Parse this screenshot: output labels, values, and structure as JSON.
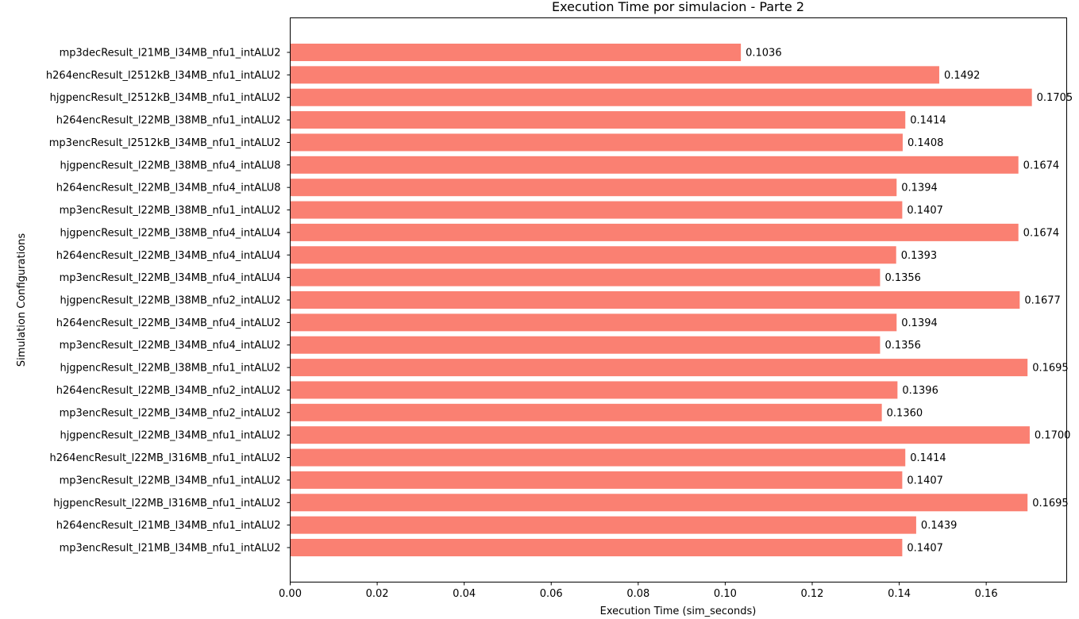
{
  "chart_data": {
    "type": "bar",
    "orientation": "horizontal",
    "title": "Execution Time por simulacion - Parte 2",
    "xlabel": "Execution Time (sim_seconds)",
    "ylabel": "Simulation Configurations",
    "xlim": [
      0,
      0.1785
    ],
    "xticks": [
      0.0,
      0.02,
      0.04,
      0.06,
      0.08,
      0.1,
      0.12,
      0.14,
      0.16
    ],
    "xtick_labels": [
      "0.00",
      "0.02",
      "0.04",
      "0.06",
      "0.08",
      "0.10",
      "0.12",
      "0.14",
      "0.16"
    ],
    "bar_color": "#fa8072",
    "grid": false,
    "categories": [
      "mp3decResult_l21MB_l34MB_nfu1_intALU2",
      "h264encResult_l2512kB_l34MB_nfu1_intALU2",
      "hjgpencResult_l2512kB_l34MB_nfu1_intALU2",
      "h264encResult_l22MB_l38MB_nfu1_intALU2",
      "mp3encResult_l2512kB_l34MB_nfu1_intALU2",
      "hjgpencResult_l22MB_l38MB_nfu4_intALU8",
      "h264encResult_l22MB_l34MB_nfu4_intALU8",
      "mp3encResult_l22MB_l38MB_nfu1_intALU2",
      "hjgpencResult_l22MB_l38MB_nfu4_intALU4",
      "h264encResult_l22MB_l34MB_nfu4_intALU4",
      "mp3encResult_l22MB_l34MB_nfu4_intALU4",
      "hjgpencResult_l22MB_l38MB_nfu2_intALU2",
      "h264encResult_l22MB_l34MB_nfu4_intALU2",
      "mp3encResult_l22MB_l34MB_nfu4_intALU2",
      "hjgpencResult_l22MB_l38MB_nfu1_intALU2",
      "h264encResult_l22MB_l34MB_nfu2_intALU2",
      "mp3encResult_l22MB_l34MB_nfu2_intALU2",
      "hjgpencResult_l22MB_l34MB_nfu1_intALU2",
      "h264encResult_l22MB_l316MB_nfu1_intALU2",
      "mp3encResult_l22MB_l34MB_nfu1_intALU2",
      "hjgpencResult_l22MB_l316MB_nfu1_intALU2",
      "h264encResult_l21MB_l34MB_nfu1_intALU2",
      "mp3encResult_l21MB_l34MB_nfu1_intALU2"
    ],
    "values": [
      0.1036,
      0.1492,
      0.1705,
      0.1414,
      0.1408,
      0.1674,
      0.1394,
      0.1407,
      0.1674,
      0.1393,
      0.1356,
      0.1677,
      0.1394,
      0.1356,
      0.1695,
      0.1396,
      0.136,
      0.17,
      0.1414,
      0.1407,
      0.1695,
      0.1439,
      0.1407
    ],
    "value_labels": [
      "0.1036",
      "0.1492",
      "0.1705",
      "0.1414",
      "0.1408",
      "0.1674",
      "0.1394",
      "0.1407",
      "0.1674",
      "0.1393",
      "0.1356",
      "0.1677",
      "0.1394",
      "0.1356",
      "0.1695",
      "0.1396",
      "0.1360",
      "0.1700",
      "0.1414",
      "0.1407",
      "0.1695",
      "0.1439",
      "0.1407"
    ]
  }
}
